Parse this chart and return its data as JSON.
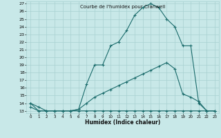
{
  "title": "Courbe de l'humidex pour Cranwell",
  "xlabel": "Humidex (Indice chaleur)",
  "bg_color": "#c8e8e8",
  "line_color": "#1a6b6b",
  "grid_color": "#a8d0d0",
  "xlim": [
    0,
    23
  ],
  "ylim": [
    13,
    27
  ],
  "xticks": [
    0,
    1,
    2,
    3,
    4,
    5,
    6,
    7,
    8,
    9,
    10,
    11,
    12,
    13,
    14,
    15,
    16,
    17,
    18,
    19,
    20,
    21,
    22,
    23
  ],
  "yticks": [
    13,
    14,
    15,
    16,
    17,
    18,
    19,
    20,
    21,
    22,
    23,
    24,
    25,
    26,
    27
  ],
  "line1_x": [
    0,
    1,
    2,
    3,
    4,
    5,
    6,
    7,
    8,
    9,
    10,
    11,
    12,
    13,
    14,
    15,
    16,
    17,
    18,
    19,
    20,
    21,
    22,
    23
  ],
  "line1_y": [
    13.5,
    13,
    13,
    13,
    13,
    13,
    13,
    13,
    13,
    13,
    13,
    13,
    13,
    13,
    13,
    13,
    13,
    13,
    13,
    13,
    13,
    13,
    13,
    13
  ],
  "line2_x": [
    0,
    1,
    2,
    3,
    4,
    5,
    6,
    7,
    8,
    9,
    10,
    11,
    12,
    13,
    14,
    15,
    16,
    17,
    18,
    19,
    20,
    21,
    22,
    23
  ],
  "line2_y": [
    14,
    13,
    13,
    13,
    13,
    13,
    13.2,
    14,
    14.8,
    15.3,
    15.8,
    16.3,
    16.8,
    17.3,
    17.8,
    18.3,
    18.8,
    19.3,
    18.5,
    15.2,
    14.8,
    14.2,
    13,
    13
  ],
  "line3_x": [
    0,
    1,
    2,
    3,
    4,
    5,
    6,
    7,
    8,
    9,
    10,
    11,
    12,
    13,
    14,
    15,
    16,
    17,
    18,
    19,
    20,
    21,
    22,
    23
  ],
  "line3_y": [
    14,
    13.5,
    13,
    13,
    13,
    13,
    13.2,
    16.5,
    19,
    19,
    21.5,
    22,
    23.5,
    25.5,
    26.5,
    27,
    26.5,
    25,
    24,
    21.5,
    21.5,
    14,
    13,
    13
  ]
}
